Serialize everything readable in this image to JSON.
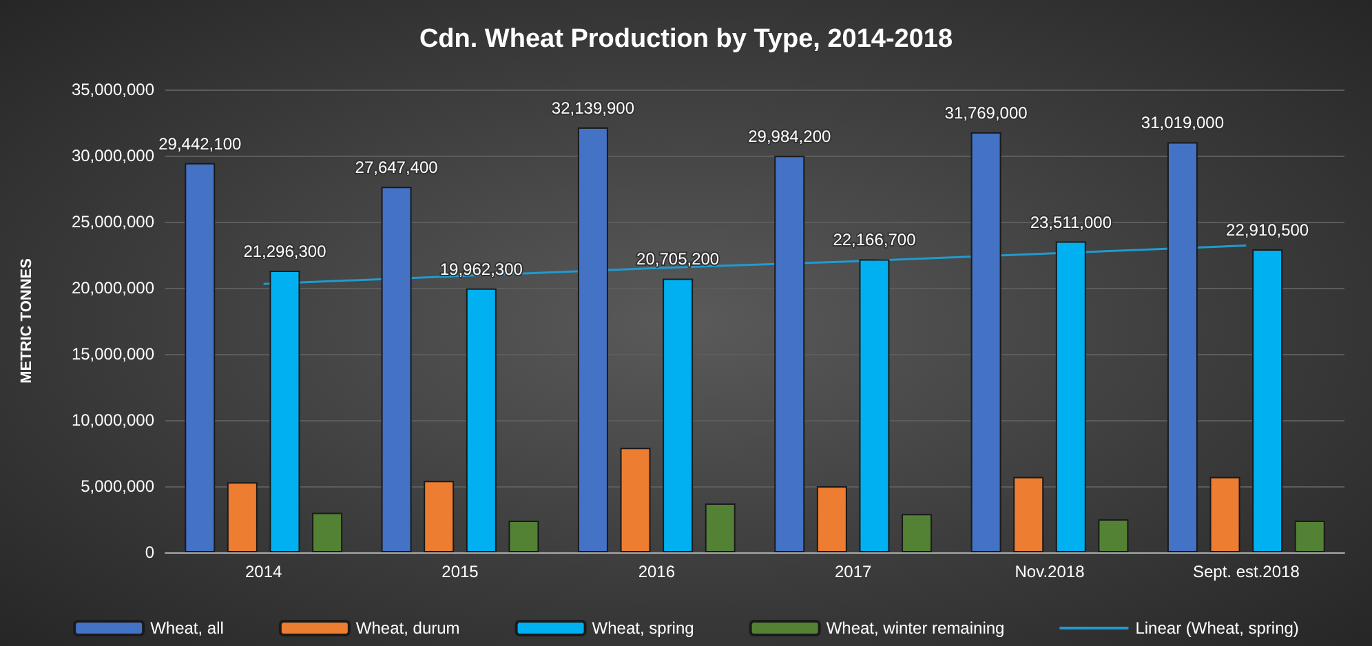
{
  "chart_data": {
    "type": "bar",
    "title": "Cdn. Wheat Production by Type, 2014-2018",
    "ylabel": "METRIC TONNES",
    "categories": [
      "2014",
      "2015",
      "2016",
      "2017",
      "Nov.2018",
      "Sept. est.2018"
    ],
    "series": [
      {
        "name": "Wheat, all",
        "color": "#4472c4",
        "values": [
          29442100,
          27647400,
          32139900,
          29984200,
          31769000,
          31019000
        ],
        "value_labels": [
          "29,442,100",
          "27,647,400",
          "32,139,900",
          "29,984,200",
          "31,769,000",
          "31,019,000"
        ]
      },
      {
        "name": "Wheat, durum",
        "color": "#ed7d31",
        "values": [
          5300000,
          5400000,
          7900000,
          5000000,
          5700000,
          5700000
        ]
      },
      {
        "name": "Wheat, spring",
        "color": "#00b0f0",
        "values": [
          21296300,
          19962300,
          20705200,
          22166700,
          23511000,
          22910500
        ],
        "value_labels": [
          "21,296,300",
          "19,962,300",
          "20,705,200",
          "22,166,700",
          "23,511,000",
          "22,910,500"
        ]
      },
      {
        "name": "Wheat, winter remaining",
        "color": "#548235",
        "values": [
          3000000,
          2400000,
          3700000,
          2900000,
          2500000,
          2400000
        ]
      },
      {
        "name": "Linear (Wheat, spring)",
        "type": "line",
        "color": "#1f9bd1",
        "values": [
          20300000,
          20900000,
          21500000,
          22000000,
          22600000,
          23200000
        ],
        "marker": "none"
      }
    ],
    "ylim": [
      0,
      35000000
    ],
    "yticks": [
      {
        "value": 0,
        "label": "0"
      },
      {
        "value": 5000000,
        "label": "5,000,000"
      },
      {
        "value": 10000000,
        "label": "10,000,000"
      },
      {
        "value": 15000000,
        "label": "15,000,000"
      },
      {
        "value": 20000000,
        "label": "20,000,000"
      },
      {
        "value": 25000000,
        "label": "25,000,000"
      },
      {
        "value": 30000000,
        "label": "30,000,000"
      },
      {
        "value": 35000000,
        "label": "35,000,000"
      }
    ],
    "grid": "y",
    "legend": "bottom"
  }
}
